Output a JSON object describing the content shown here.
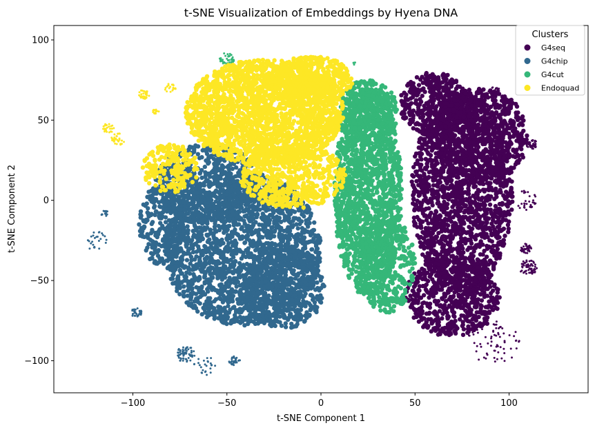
{
  "chart_data": {
    "type": "scatter",
    "title": "t-SNE Visualization of Embeddings by Hyena DNA",
    "xlabel": "t-SNE Component 1",
    "ylabel": "t-SNE Component 2",
    "xlim": [
      -142,
      142
    ],
    "ylim": [
      -120,
      109
    ],
    "x_ticks": [
      -100,
      -50,
      0,
      50,
      100
    ],
    "y_ticks": [
      -100,
      -50,
      0,
      50,
      100
    ],
    "x_tick_labels": [
      "−100",
      "−50",
      "0",
      "50",
      "100"
    ],
    "y_tick_labels": [
      "−100",
      "−50",
      "0",
      "50",
      "100"
    ],
    "grid": false,
    "legend": {
      "title": "Clusters",
      "placement": "top-right"
    },
    "series": [
      {
        "name": "G4seq",
        "color": "#440154",
        "regions": [
          {
            "x": 75,
            "y": 5,
            "rx": 27,
            "ry": 62,
            "n": 1700
          },
          {
            "x": 85,
            "y": 40,
            "rx": 25,
            "ry": 30,
            "n": 700
          },
          {
            "x": 70,
            "y": -60,
            "rx": 25,
            "ry": 25,
            "n": 600
          },
          {
            "x": 60,
            "y": 60,
            "rx": 18,
            "ry": 20,
            "n": 400
          }
        ],
        "clusters": [
          {
            "x": 112,
            "y": 35,
            "r": 3,
            "n": 40
          },
          {
            "x": 109,
            "y": -30,
            "r": 3,
            "n": 40
          },
          {
            "x": 110,
            "y": -42,
            "r": 5,
            "n": 60
          },
          {
            "x": 92,
            "y": -88,
            "r": 14,
            "n": 70
          },
          {
            "x": 92,
            "y": 68,
            "r": 3,
            "n": 30
          },
          {
            "x": 109,
            "y": 0,
            "r": 6,
            "n": 30
          }
        ]
      },
      {
        "name": "G4chip",
        "color": "#31688e",
        "regions": [
          {
            "x": -42,
            "y": -30,
            "rx": 42,
            "ry": 48,
            "n": 2200
          },
          {
            "x": -60,
            "y": 10,
            "rx": 28,
            "ry": 25,
            "n": 600
          },
          {
            "x": -20,
            "y": -55,
            "rx": 22,
            "ry": 25,
            "n": 500
          },
          {
            "x": -85,
            "y": -15,
            "rx": 12,
            "ry": 25,
            "n": 250
          }
        ],
        "clusters": [
          {
            "x": -98,
            "y": -70,
            "r": 3,
            "n": 30
          },
          {
            "x": -72,
            "y": -96,
            "r": 5,
            "n": 60
          },
          {
            "x": -46,
            "y": -100,
            "r": 3,
            "n": 30
          },
          {
            "x": -115,
            "y": -8,
            "r": 2,
            "n": 15
          },
          {
            "x": -120,
            "y": -25,
            "r": 6,
            "n": 25
          },
          {
            "x": -62,
            "y": -103,
            "r": 6,
            "n": 25
          }
        ]
      },
      {
        "name": "G4cut",
        "color": "#35b779",
        "regions": [
          {
            "x": 25,
            "y": 5,
            "rx": 18,
            "ry": 65,
            "n": 1600
          },
          {
            "x": 35,
            "y": -40,
            "rx": 15,
            "ry": 30,
            "n": 400
          },
          {
            "x": 25,
            "y": 55,
            "rx": 16,
            "ry": 20,
            "n": 400
          }
        ],
        "clusters": [
          {
            "x": -50,
            "y": 88,
            "r": 4,
            "n": 40
          },
          {
            "x": 18,
            "y": 85,
            "r": 1,
            "n": 5
          }
        ]
      },
      {
        "name": "Endoquad",
        "color": "#fde725",
        "regions": [
          {
            "x": -30,
            "y": 55,
            "rx": 42,
            "ry": 33,
            "n": 2200
          },
          {
            "x": -15,
            "y": 15,
            "rx": 28,
            "ry": 20,
            "n": 600
          },
          {
            "x": -5,
            "y": 75,
            "rx": 22,
            "ry": 15,
            "n": 500
          },
          {
            "x": -80,
            "y": 20,
            "rx": 15,
            "ry": 15,
            "n": 200
          }
        ],
        "clusters": [
          {
            "x": -94,
            "y": 66,
            "r": 3,
            "n": 30
          },
          {
            "x": -108,
            "y": 38,
            "r": 4,
            "n": 30
          },
          {
            "x": -113,
            "y": 45,
            "r": 3,
            "n": 25
          },
          {
            "x": -80,
            "y": 70,
            "r": 3,
            "n": 20
          },
          {
            "x": -88,
            "y": 55,
            "r": 2,
            "n": 15
          }
        ]
      }
    ]
  }
}
